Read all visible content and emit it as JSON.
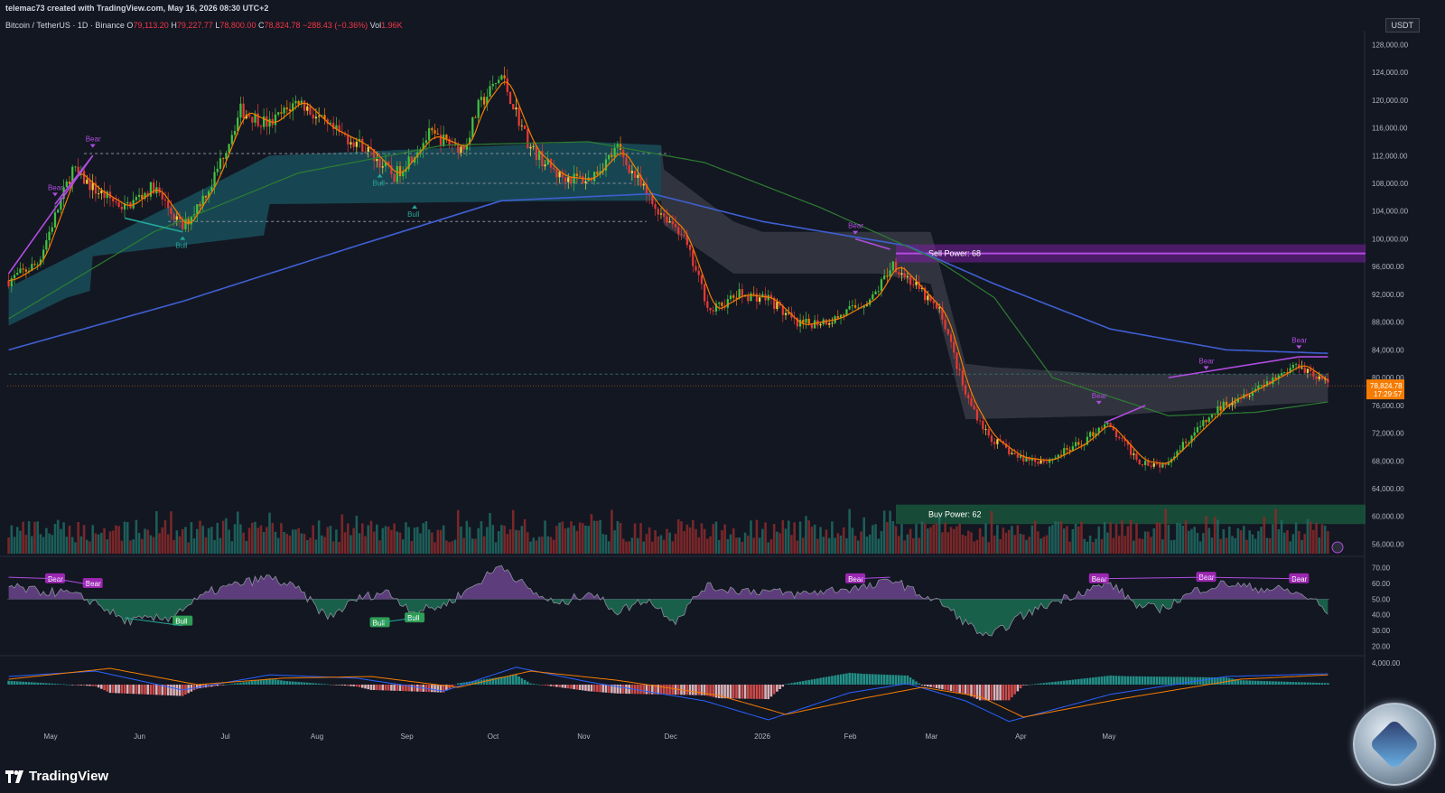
{
  "header": {
    "created_by": "telemac73 created with TradingView.com, May 16, 2026 08:30 UTC+2",
    "symbol": "Bitcoin / TetherUS · 1D · Binance",
    "open_label": "O",
    "open": "79,113.20",
    "high_label": "H",
    "high": "79,227.77",
    "low_label": "L",
    "low": "78,800.00",
    "close_label": "C",
    "close": "78,824.78",
    "change": "−288.43 (−0.36%)",
    "vol_label": "Vol",
    "vol": "1.96K"
  },
  "currency": "USDT",
  "brand": "TradingView",
  "price_badge": {
    "price": "78,824.78",
    "countdown": "17:29:57"
  },
  "colors": {
    "background": "#131722",
    "bull": "#26a69a",
    "bear": "#ef5350",
    "ma_blue": "#3f5fd1",
    "ma_green": "#2e7d32",
    "ema_orange": "#f57c00",
    "purple": "#9c27b0",
    "badge_orange": "#f57c00"
  },
  "chart_data": [
    {
      "type": "candlestick",
      "yticks": [
        "128,000.00",
        "124,000.00",
        "120,000.00",
        "116,000.00",
        "112,000.00",
        "108,000.00",
        "104,000.00",
        "100,000.00",
        "96,000.00",
        "92,000.00",
        "88,000.00",
        "84,000.00",
        "80,000.00",
        "76,000.00",
        "72,000.00",
        "68,000.00",
        "64,000.00",
        "60,000.00",
        "56,000.00"
      ],
      "ylim": [
        54500,
        130000
      ],
      "xticks": [
        "May",
        "Jun",
        "Jul",
        "Aug",
        "Sep",
        "Oct",
        "Nov",
        "Dec",
        "2026",
        "Feb",
        "Mar",
        "Apr",
        "May"
      ],
      "close_anchors": [
        [
          0,
          94000
        ],
        [
          10,
          96500
        ],
        [
          22,
          110000
        ],
        [
          30,
          107000
        ],
        [
          40,
          104500
        ],
        [
          50,
          107500
        ],
        [
          60,
          101500
        ],
        [
          70,
          108000
        ],
        [
          80,
          118500
        ],
        [
          90,
          116500
        ],
        [
          100,
          120000
        ],
        [
          110,
          116000
        ],
        [
          122,
          113500
        ],
        [
          133,
          109000
        ],
        [
          145,
          115000
        ],
        [
          157,
          113000
        ],
        [
          162,
          119000
        ],
        [
          170,
          123500
        ],
        [
          180,
          113000
        ],
        [
          190,
          109000
        ],
        [
          200,
          108500
        ],
        [
          210,
          113000
        ],
        [
          222,
          105000
        ],
        [
          232,
          101000
        ],
        [
          242,
          89500
        ],
        [
          252,
          92000
        ],
        [
          262,
          91500
        ],
        [
          272,
          87500
        ],
        [
          285,
          88500
        ],
        [
          298,
          91500
        ],
        [
          305,
          96500
        ],
        [
          312,
          93500
        ],
        [
          322,
          89000
        ],
        [
          330,
          77500
        ],
        [
          338,
          71500
        ],
        [
          348,
          68500
        ],
        [
          358,
          68000
        ],
        [
          370,
          70500
        ],
        [
          378,
          73500
        ],
        [
          390,
          68000
        ],
        [
          398,
          67500
        ],
        [
          410,
          72500
        ],
        [
          420,
          76500
        ],
        [
          430,
          78500
        ],
        [
          445,
          82000
        ],
        [
          455,
          79000
        ]
      ],
      "sma_anchors": [
        [
          0,
          84000
        ],
        [
          60,
          91000
        ],
        [
          120,
          99000
        ],
        [
          170,
          105500
        ],
        [
          222,
          106500
        ],
        [
          260,
          102500
        ],
        [
          310,
          99000
        ],
        [
          340,
          93500
        ],
        [
          380,
          87000
        ],
        [
          420,
          84000
        ],
        [
          455,
          83500
        ]
      ],
      "ma_green_anchors": [
        [
          0,
          88500
        ],
        [
          50,
          101000
        ],
        [
          100,
          109500
        ],
        [
          150,
          113500
        ],
        [
          200,
          114000
        ],
        [
          240,
          111000
        ],
        [
          280,
          104500
        ],
        [
          320,
          97000
        ],
        [
          340,
          91500
        ],
        [
          360,
          80000
        ],
        [
          400,
          74500
        ],
        [
          430,
          75000
        ],
        [
          455,
          76500
        ]
      ],
      "cloud_upper": [
        [
          0,
          93000
        ],
        [
          90,
          112000
        ],
        [
          200,
          114000
        ],
        [
          225,
          113500
        ],
        [
          226,
          110000
        ],
        [
          250,
          102500
        ],
        [
          260,
          101000
        ],
        [
          318,
          101000
        ],
        [
          330,
          82000
        ],
        [
          340,
          81500
        ],
        [
          380,
          80500
        ],
        [
          455,
          80500
        ]
      ],
      "cloud_lower": [
        [
          0,
          87500
        ],
        [
          20,
          91500
        ],
        [
          28,
          92500
        ],
        [
          29,
          97500
        ],
        [
          88,
          100500
        ],
        [
          90,
          105000
        ],
        [
          200,
          105500
        ],
        [
          225,
          105500
        ],
        [
          226,
          102000
        ],
        [
          250,
          95000
        ],
        [
          300,
          95000
        ],
        [
          318,
          93500
        ],
        [
          330,
          74000
        ],
        [
          380,
          74500
        ],
        [
          430,
          76000
        ],
        [
          455,
          76500
        ]
      ],
      "dashed_levels": [
        {
          "value": 112300,
          "from": 26,
          "to": 228
        },
        {
          "value": 102500,
          "from": 55,
          "to": 220
        },
        {
          "value": 108000,
          "from": 128,
          "to": 215
        },
        {
          "value": 80500,
          "from": 0,
          "to": 455
        }
      ],
      "zones": [
        {
          "label": "Sell Power: 68",
          "from_value": 96600,
          "to_value": 99200
        },
        {
          "label": "Buy Power: 62",
          "from_value": 58900,
          "to_value": 61700
        }
      ],
      "tags": [
        {
          "text": "Bear",
          "bar": 29,
          "value": 113000
        },
        {
          "text": "Bear",
          "bar": 16,
          "value": 106000
        },
        {
          "text": "Bull",
          "bar": 60,
          "value": 100500
        },
        {
          "text": "Bull",
          "bar": 128,
          "value": 109500
        },
        {
          "text": "Bull",
          "bar": 140,
          "value": 105000
        },
        {
          "text": "Bear",
          "bar": 292,
          "value": 100500
        },
        {
          "text": "Bear",
          "bar": 376,
          "value": 76000
        },
        {
          "text": "Bear",
          "bar": 413,
          "value": 81000
        },
        {
          "text": "Bear",
          "bar": 445,
          "value": 84000
        }
      ],
      "current_price": 78824.78,
      "volume_max_bar": 58000
    },
    {
      "type": "area",
      "name": "RSI",
      "yticks": [
        "70.00",
        "60.00",
        "50.00",
        "40.00",
        "30.00",
        "20.00"
      ],
      "ylim": [
        15,
        75
      ],
      "midline": 50,
      "rsi_anchors": [
        [
          0,
          58
        ],
        [
          10,
          55
        ],
        [
          20,
          54
        ],
        [
          30,
          48
        ],
        [
          40,
          36
        ],
        [
          55,
          38
        ],
        [
          60,
          44
        ],
        [
          70,
          55
        ],
        [
          80,
          60
        ],
        [
          90,
          64
        ],
        [
          100,
          56
        ],
        [
          110,
          38
        ],
        [
          120,
          50
        ],
        [
          130,
          55
        ],
        [
          140,
          42
        ],
        [
          150,
          46
        ],
        [
          160,
          58
        ],
        [
          170,
          72
        ],
        [
          180,
          55
        ],
        [
          190,
          46
        ],
        [
          200,
          55
        ],
        [
          210,
          42
        ],
        [
          220,
          50
        ],
        [
          230,
          36
        ],
        [
          240,
          58
        ],
        [
          250,
          56
        ],
        [
          262,
          55
        ],
        [
          272,
          53
        ],
        [
          285,
          56
        ],
        [
          298,
          58
        ],
        [
          305,
          63
        ],
        [
          312,
          55
        ],
        [
          322,
          47
        ],
        [
          330,
          35
        ],
        [
          338,
          25
        ],
        [
          348,
          38
        ],
        [
          360,
          48
        ],
        [
          372,
          56
        ],
        [
          380,
          60
        ],
        [
          390,
          45
        ],
        [
          398,
          44
        ],
        [
          410,
          56
        ],
        [
          420,
          60
        ],
        [
          430,
          57
        ],
        [
          440,
          56
        ],
        [
          450,
          50
        ],
        [
          455,
          40
        ]
      ],
      "tags": [
        {
          "text": "Bear",
          "bar": 16,
          "value": 63
        },
        {
          "text": "Bear",
          "bar": 29,
          "value": 60
        },
        {
          "text": "Bull",
          "bar": 60,
          "value": 36
        },
        {
          "text": "Bull",
          "bar": 128,
          "value": 35
        },
        {
          "text": "Bull",
          "bar": 140,
          "value": 38
        },
        {
          "text": "Bear",
          "bar": 292,
          "value": 63
        },
        {
          "text": "Bear",
          "bar": 376,
          "value": 63
        },
        {
          "text": "Bear",
          "bar": 413,
          "value": 64
        },
        {
          "text": "Bear",
          "bar": 445,
          "value": 63
        }
      ]
    },
    {
      "type": "line",
      "name": "MACD",
      "yticks": [
        "4,000.00"
      ],
      "ylim": [
        -8000,
        5000
      ],
      "macd_anchors": [
        [
          0,
          1500
        ],
        [
          30,
          2500
        ],
        [
          60,
          -1000
        ],
        [
          90,
          1800
        ],
        [
          120,
          1200
        ],
        [
          150,
          -1200
        ],
        [
          175,
          3200
        ],
        [
          200,
          500
        ],
        [
          240,
          -3000
        ],
        [
          262,
          -6500
        ],
        [
          290,
          -1500
        ],
        [
          310,
          200
        ],
        [
          330,
          -3000
        ],
        [
          345,
          -6800
        ],
        [
          380,
          -1800
        ],
        [
          420,
          1500
        ],
        [
          455,
          2000
        ]
      ],
      "signal_anchors": [
        [
          0,
          1000
        ],
        [
          35,
          3000
        ],
        [
          65,
          0
        ],
        [
          95,
          1200
        ],
        [
          125,
          1500
        ],
        [
          155,
          -500
        ],
        [
          180,
          2500
        ],
        [
          210,
          800
        ],
        [
          245,
          -2000
        ],
        [
          268,
          -5500
        ],
        [
          295,
          -2500
        ],
        [
          315,
          -500
        ],
        [
          335,
          -2200
        ],
        [
          350,
          -6000
        ],
        [
          385,
          -2500
        ],
        [
          425,
          1000
        ],
        [
          455,
          1800
        ]
      ]
    }
  ]
}
